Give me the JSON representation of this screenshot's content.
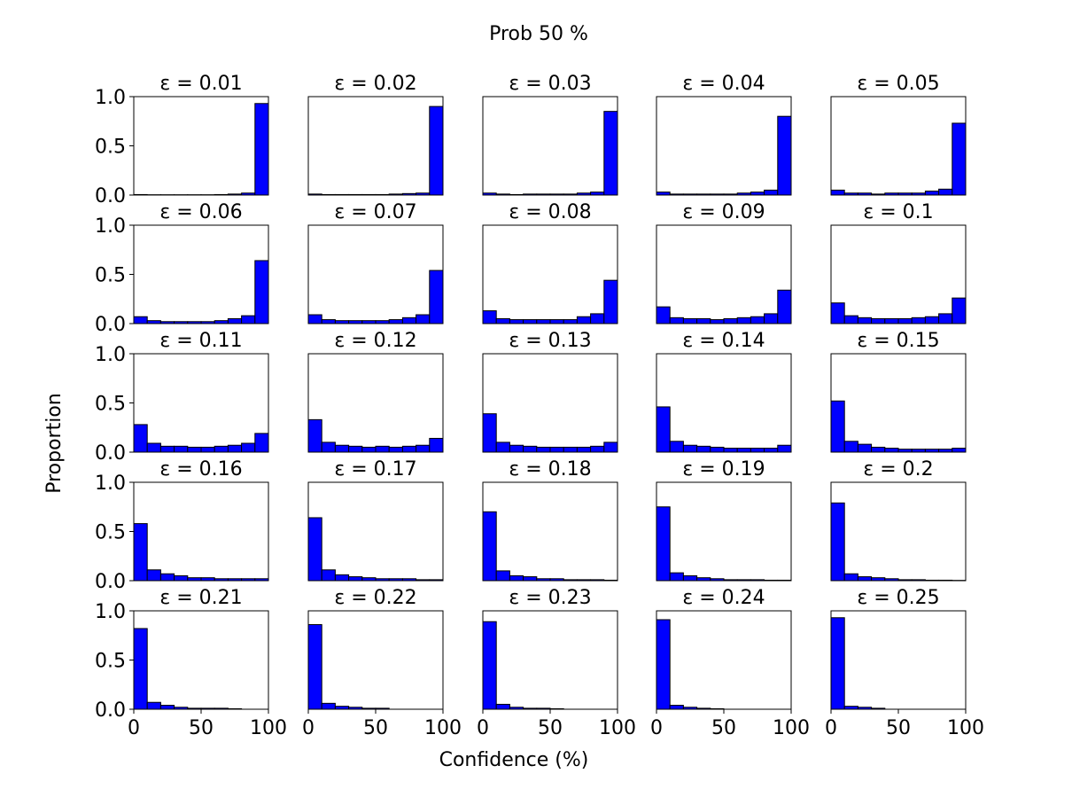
{
  "figure": {
    "title": "Prob 50 %",
    "xlabel": "Confidence (%)",
    "ylabel": "Proportion"
  },
  "chart_data": {
    "type": "bar",
    "layout": "5x5 grid of histograms",
    "bar_color": "#0000ff",
    "edge_color": "#000000",
    "bins": [
      [
        0,
        10
      ],
      [
        10,
        20
      ],
      [
        20,
        30
      ],
      [
        30,
        40
      ],
      [
        40,
        50
      ],
      [
        50,
        60
      ],
      [
        60,
        70
      ],
      [
        70,
        80
      ],
      [
        80,
        90
      ],
      [
        90,
        100
      ]
    ],
    "xlim": [
      0,
      100
    ],
    "ylim": [
      0,
      1.0
    ],
    "x_ticks": [
      0,
      50,
      100
    ],
    "y_ticks": [
      0.0,
      0.5,
      1.0
    ],
    "x_tick_labels": [
      "0",
      "50",
      "100"
    ],
    "y_tick_labels": [
      "0.0",
      "0.5",
      "1.0"
    ],
    "panels": [
      {
        "title": "ε = 0.01",
        "values": [
          0.005,
          0.003,
          0.003,
          0.003,
          0.003,
          0.003,
          0.005,
          0.01,
          0.02,
          0.93
        ]
      },
      {
        "title": "ε = 0.02",
        "values": [
          0.01,
          0.005,
          0.005,
          0.005,
          0.005,
          0.005,
          0.01,
          0.015,
          0.02,
          0.9
        ]
      },
      {
        "title": "ε = 0.03",
        "values": [
          0.02,
          0.01,
          0.005,
          0.01,
          0.01,
          0.01,
          0.01,
          0.02,
          0.03,
          0.85
        ]
      },
      {
        "title": "ε = 0.04",
        "values": [
          0.03,
          0.01,
          0.01,
          0.01,
          0.01,
          0.01,
          0.02,
          0.03,
          0.05,
          0.8
        ]
      },
      {
        "title": "ε = 0.05",
        "values": [
          0.05,
          0.02,
          0.02,
          0.01,
          0.02,
          0.02,
          0.02,
          0.04,
          0.06,
          0.73
        ]
      },
      {
        "title": "ε = 0.06",
        "values": [
          0.07,
          0.03,
          0.02,
          0.02,
          0.02,
          0.02,
          0.03,
          0.05,
          0.08,
          0.64
        ]
      },
      {
        "title": "ε = 0.07",
        "values": [
          0.09,
          0.04,
          0.03,
          0.03,
          0.03,
          0.03,
          0.04,
          0.06,
          0.09,
          0.54
        ]
      },
      {
        "title": "ε = 0.08",
        "values": [
          0.13,
          0.05,
          0.04,
          0.04,
          0.04,
          0.04,
          0.04,
          0.07,
          0.1,
          0.44
        ]
      },
      {
        "title": "ε = 0.09",
        "values": [
          0.17,
          0.06,
          0.05,
          0.05,
          0.04,
          0.05,
          0.06,
          0.07,
          0.1,
          0.34
        ]
      },
      {
        "title": "ε = 0.1",
        "values": [
          0.21,
          0.08,
          0.06,
          0.05,
          0.05,
          0.05,
          0.06,
          0.07,
          0.1,
          0.26
        ]
      },
      {
        "title": "ε = 0.11",
        "values": [
          0.28,
          0.09,
          0.06,
          0.06,
          0.05,
          0.05,
          0.06,
          0.07,
          0.09,
          0.19
        ]
      },
      {
        "title": "ε = 0.12",
        "values": [
          0.33,
          0.1,
          0.07,
          0.06,
          0.05,
          0.06,
          0.05,
          0.06,
          0.07,
          0.14
        ]
      },
      {
        "title": "ε = 0.13",
        "values": [
          0.39,
          0.1,
          0.07,
          0.06,
          0.05,
          0.05,
          0.05,
          0.05,
          0.06,
          0.1
        ]
      },
      {
        "title": "ε = 0.14",
        "values": [
          0.46,
          0.11,
          0.07,
          0.06,
          0.05,
          0.04,
          0.04,
          0.04,
          0.04,
          0.07
        ]
      },
      {
        "title": "ε = 0.15",
        "values": [
          0.52,
          0.11,
          0.08,
          0.05,
          0.04,
          0.03,
          0.03,
          0.03,
          0.03,
          0.04
        ]
      },
      {
        "title": "ε = 0.16",
        "values": [
          0.58,
          0.11,
          0.07,
          0.05,
          0.03,
          0.03,
          0.02,
          0.02,
          0.02,
          0.02
        ]
      },
      {
        "title": "ε = 0.17",
        "values": [
          0.64,
          0.11,
          0.06,
          0.04,
          0.03,
          0.02,
          0.02,
          0.02,
          0.01,
          0.01
        ]
      },
      {
        "title": "ε = 0.18",
        "values": [
          0.7,
          0.1,
          0.05,
          0.04,
          0.02,
          0.02,
          0.01,
          0.01,
          0.01,
          0.005
        ]
      },
      {
        "title": "ε = 0.19",
        "values": [
          0.75,
          0.08,
          0.05,
          0.03,
          0.02,
          0.01,
          0.01,
          0.01,
          0.005,
          0.005
        ]
      },
      {
        "title": "ε = 0.2",
        "values": [
          0.79,
          0.07,
          0.04,
          0.03,
          0.02,
          0.01,
          0.01,
          0.005,
          0.005,
          0.003
        ]
      },
      {
        "title": "ε = 0.21",
        "values": [
          0.82,
          0.07,
          0.04,
          0.02,
          0.01,
          0.01,
          0.01,
          0.005,
          0,
          0
        ]
      },
      {
        "title": "ε = 0.22",
        "values": [
          0.86,
          0.06,
          0.03,
          0.02,
          0.01,
          0.01,
          0,
          0,
          0,
          0
        ]
      },
      {
        "title": "ε = 0.23",
        "values": [
          0.89,
          0.05,
          0.02,
          0.01,
          0.01,
          0.005,
          0,
          0,
          0,
          0
        ]
      },
      {
        "title": "ε = 0.24",
        "values": [
          0.91,
          0.04,
          0.02,
          0.01,
          0.005,
          0,
          0,
          0,
          0,
          0
        ]
      },
      {
        "title": "ε = 0.25",
        "values": [
          0.93,
          0.03,
          0.02,
          0.01,
          0,
          0,
          0,
          0,
          0,
          0
        ]
      }
    ]
  }
}
